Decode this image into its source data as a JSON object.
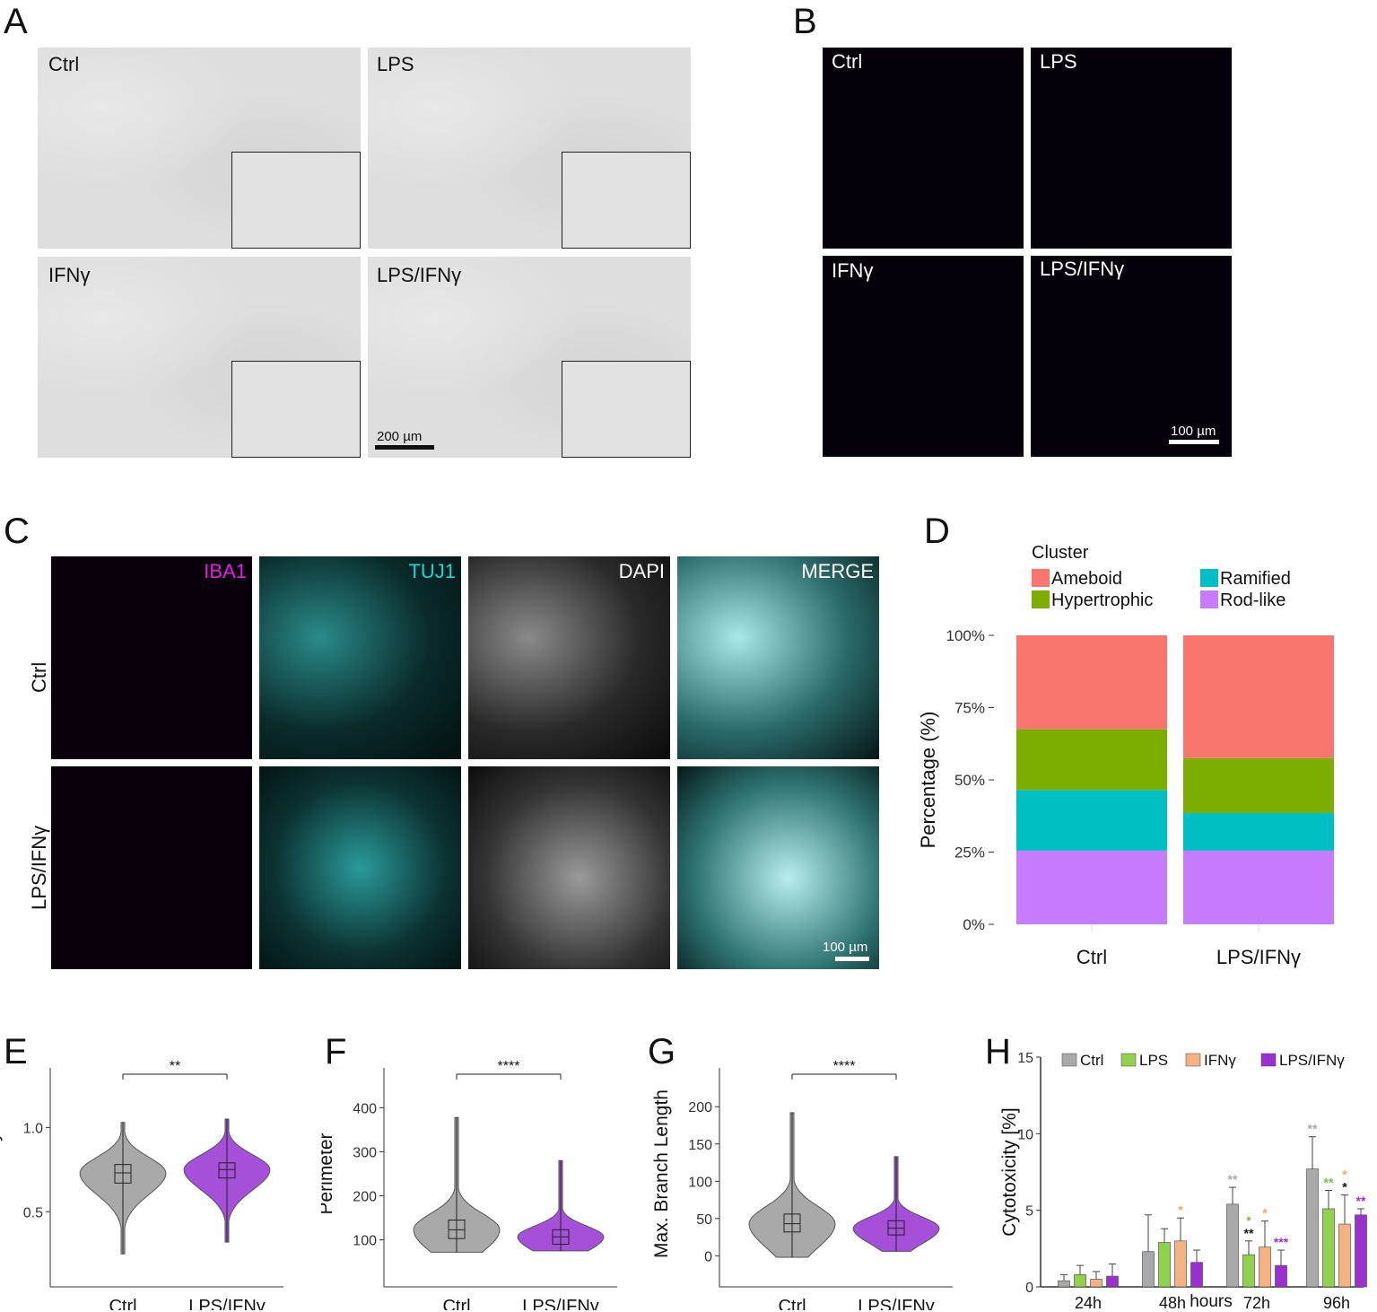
{
  "panel_letters": [
    "A",
    "B",
    "C",
    "D",
    "E",
    "F",
    "G",
    "H"
  ],
  "A": {
    "labels": [
      "Ctrl",
      "LPS",
      "IFNγ",
      "LPS/IFNγ"
    ],
    "scale": "200 µm"
  },
  "B": {
    "labels": [
      "Ctrl",
      "LPS",
      "IFNγ",
      "LPS/IFNγ"
    ],
    "scale": "100 µm"
  },
  "C": {
    "channels": [
      "IBA1",
      "TUJ1",
      "DAPI",
      "MERGE"
    ],
    "rows": [
      "Ctrl",
      "LPS/IFNγ"
    ],
    "scale": "100 µm",
    "channel_colors": {
      "IBA1": "#e020e0",
      "TUJ1": "#22d3d3",
      "DAPI": "#ffffff"
    }
  },
  "chart_data": [
    {
      "id": "D",
      "type": "bar",
      "stacked": true,
      "legend_title": "Cluster",
      "categories": [
        "Ctrl",
        "LPS/IFNγ"
      ],
      "series": [
        {
          "name": "Rod-like",
          "values": [
            25.5,
            25.5
          ],
          "color": "#c77cff"
        },
        {
          "name": "Ramified",
          "values": [
            21.0,
            13.0
          ],
          "color": "#00bfc4"
        },
        {
          "name": "Hypertrophic",
          "values": [
            21.0,
            19.0
          ],
          "color": "#7cae00"
        },
        {
          "name": "Ameboid",
          "values": [
            32.5,
            42.5
          ],
          "color": "#f8766d"
        }
      ],
      "legend_order": [
        "Ameboid",
        "Hypertrophic",
        "Ramified",
        "Rod-like"
      ],
      "ylabel": "Percentage (%)",
      "yticks": [
        "0%",
        "25%",
        "50%",
        "75%",
        "100%"
      ],
      "ylim": [
        0,
        100
      ]
    },
    {
      "id": "E",
      "type": "violin",
      "categories": [
        "Ctrl",
        "LPS/IFNγ"
      ],
      "ylabel": "Circularity",
      "yticks": [
        0.5,
        1.0
      ],
      "ytick_labels": [
        "0.5",
        "1.0"
      ],
      "ylim": [
        0.15,
        1.3
      ],
      "colors": [
        "#a9a9a9",
        "#a64fd9"
      ],
      "medians": [
        0.73,
        0.75
      ],
      "q1": [
        0.67,
        0.7
      ],
      "q3": [
        0.78,
        0.79
      ],
      "range": [
        [
          0.25,
          1.03
        ],
        [
          0.32,
          1.05
        ]
      ],
      "significance": "**"
    },
    {
      "id": "F",
      "type": "violin",
      "categories": [
        "Ctrl",
        "LPS/IFNγ"
      ],
      "ylabel": "Perimeter",
      "yticks": [
        100,
        200,
        300,
        400
      ],
      "ytick_labels": [
        "100",
        "200",
        "300",
        "400"
      ],
      "ylim": [
        30,
        470
      ],
      "colors": [
        "#a9a9a9",
        "#a64fd9"
      ],
      "medians": [
        123,
        107
      ],
      "q1": [
        103,
        90
      ],
      "q3": [
        145,
        123
      ],
      "range": [
        [
          72,
          378
        ],
        [
          75,
          280
        ]
      ],
      "significance": "****"
    },
    {
      "id": "G",
      "type": "violin",
      "categories": [
        "Ctrl",
        "LPS/IFNγ"
      ],
      "ylabel": "Max. Branch Length",
      "yticks": [
        0,
        50,
        100,
        150,
        200
      ],
      "ytick_labels": [
        "0",
        "50",
        "100",
        "150",
        "200"
      ],
      "ylim": [
        -20,
        240
      ],
      "colors": [
        "#a9a9a9",
        "#a64fd9"
      ],
      "medians": [
        43,
        37
      ],
      "q1": [
        32,
        28
      ],
      "q3": [
        56,
        47
      ],
      "range": [
        [
          -2,
          192
        ],
        [
          6,
          133
        ]
      ],
      "significance": "****"
    },
    {
      "id": "H",
      "type": "bar",
      "categories": [
        "24h",
        "48h",
        "72h",
        "96h"
      ],
      "xlabel": "hours",
      "ylabel": "Cytotoxicity [%]",
      "ylim": [
        0,
        15
      ],
      "yticks": [
        0,
        5,
        10,
        15
      ],
      "series": [
        {
          "name": "Ctrl",
          "values": [
            0.4,
            2.3,
            5.4,
            7.7
          ],
          "err": [
            0.4,
            2.4,
            1.1,
            2.1
          ],
          "color": "#a9a9a9",
          "sig": [
            "",
            "",
            "**",
            "**"
          ],
          "sig_color": "#a9a9a9"
        },
        {
          "name": "LPS",
          "values": [
            0.8,
            2.9,
            2.1,
            5.1
          ],
          "err": [
            0.6,
            0.9,
            0.9,
            1.2
          ],
          "color": "#92d050",
          "sig": [
            "",
            "",
            "*|**",
            "**"
          ],
          "sig_color": "#7ac143"
        },
        {
          "name": "IFNγ",
          "values": [
            0.5,
            3.0,
            2.6,
            4.1
          ],
          "err": [
            0.5,
            1.5,
            1.7,
            1.9
          ],
          "color": "#f4b183",
          "sig": [
            "",
            "*",
            "*",
            "*|*"
          ],
          "sig_color": "#f4a460"
        },
        {
          "name": "LPS/IFNγ",
          "values": [
            0.7,
            1.6,
            1.4,
            4.7
          ],
          "err": [
            0.8,
            0.8,
            1.0,
            0.4
          ],
          "color": "#9b30d0",
          "sig": [
            "",
            "",
            "***",
            "**"
          ],
          "sig_color": "#9b30d0"
        }
      ]
    }
  ]
}
